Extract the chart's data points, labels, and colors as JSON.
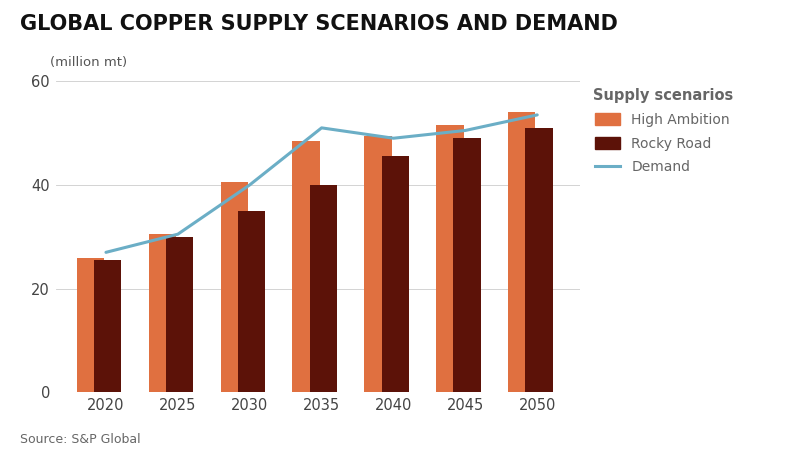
{
  "title": "GLOBAL COPPER SUPPLY SCENARIOS AND DEMAND",
  "ylabel": "(million mt)",
  "source": "Source: S&P Global",
  "years": [
    2020,
    2025,
    2030,
    2035,
    2040,
    2045,
    2050
  ],
  "high_ambition": [
    26,
    30.5,
    40.5,
    48.5,
    49.5,
    51.5,
    54
  ],
  "rocky_road": [
    25.5,
    30,
    35,
    40,
    45.5,
    49,
    51
  ],
  "demand": [
    27,
    30.5,
    40,
    51,
    49,
    50.5,
    53.5
  ],
  "color_high_ambition": "#E07040",
  "color_rocky_road": "#5C1208",
  "color_demand": "#6BAEC6",
  "ylim": [
    0,
    60
  ],
  "yticks": [
    0,
    20,
    40,
    60
  ],
  "bar_width": 1.9,
  "bar_gap": 0.25,
  "legend_title": "Supply scenarios",
  "legend_labels": [
    "High Ambition",
    "Rocky Road",
    "Demand"
  ],
  "background_color": "#FFFFFF",
  "title_fontsize": 15,
  "axis_fontsize": 10.5,
  "source_fontsize": 9,
  "legend_text_color": "#666666",
  "tick_color": "#444444"
}
